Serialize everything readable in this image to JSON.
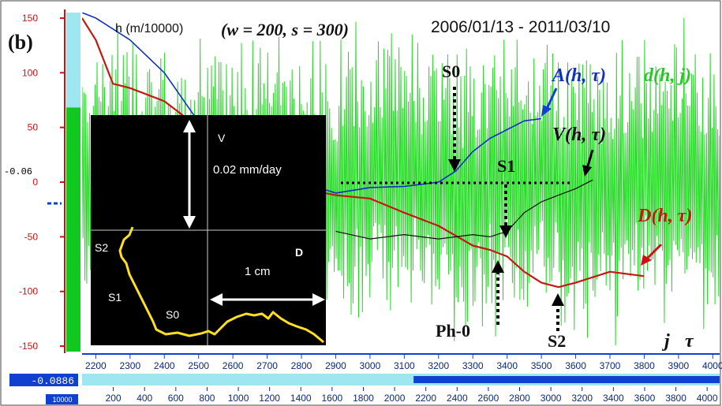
{
  "panel_label": "(b)",
  "header": {
    "unit_label": "h (m/10000)",
    "params": "(w = 200, s = 300)",
    "date_range": "2006/01/13 - 2011/03/10"
  },
  "colors": {
    "d_series": "#27d827",
    "A_series": "#1030c0",
    "V_series": "#101010",
    "D_series": "#c01a12",
    "axis_red": "#d01010",
    "axis_blue": "#1040d0",
    "gauge_cyan": "#9fe7f0",
    "gauge_green": "#10c820"
  },
  "left_gauge": {
    "marker_label": "-0.06",
    "level_fraction": 0.72
  },
  "bottom_bar": {
    "value": "-0.0886",
    "scale_tag": "10000",
    "progress_fraction": 0.52
  },
  "legend": {
    "A": "A(h, τ)",
    "V": "V(h, τ)",
    "D": "D(h, τ)",
    "d": "d(h, j)"
  },
  "axis_symbols": {
    "j": "j",
    "tau": "τ"
  },
  "annotations": {
    "S0": "S0",
    "S1": "S1",
    "S2": "S2",
    "Ph0": "Ph-0"
  },
  "inset": {
    "v_label": "V",
    "v_scale": "0.02 mm/day",
    "d_label": "D",
    "d_scale": "1 cm",
    "S0": "S0",
    "S1": "S1",
    "S2": "S2"
  },
  "chart_data": {
    "type": "line",
    "y_ticks": [
      150,
      100,
      50,
      0,
      -50,
      -100,
      -150
    ],
    "ylim": [
      -155,
      155
    ],
    "x_ticks_tau": [
      2200,
      2300,
      2400,
      2500,
      2600,
      2700,
      2800,
      2900,
      3000,
      3100,
      3200,
      3300,
      3400,
      3500,
      3600,
      3700,
      3800,
      3900,
      4000
    ],
    "xlim_tau": [
      2160,
      4020
    ],
    "x_ticks_j": [
      200,
      400,
      600,
      800,
      1000,
      1200,
      1400,
      1600,
      1800,
      2000,
      2200,
      2400,
      2600,
      2800,
      3000,
      3200,
      3400,
      3600,
      3800,
      4000
    ],
    "xlim_j": [
      0,
      4080
    ],
    "series": [
      {
        "key": "D",
        "name": "D(h, τ)",
        "x": [
          2160,
          2200,
          2250,
          2300,
          2400,
          2500,
          2600,
          2700,
          2800,
          2900,
          3000,
          3100,
          3200,
          3300,
          3350,
          3400,
          3450,
          3500,
          3550,
          3600,
          3700,
          3800
        ],
        "y": [
          150,
          130,
          90,
          86,
          74,
          50,
          34,
          10,
          -6,
          -12,
          -15,
          -28,
          -40,
          -58,
          -62,
          -68,
          -82,
          -92,
          -96,
          -92,
          -82,
          -86
        ]
      },
      {
        "key": "A",
        "name": "A(h, τ)",
        "x": [
          2160,
          2200,
          2300,
          2400,
          2500,
          2600,
          2700,
          2800,
          2900,
          3000,
          3100,
          3150,
          3200,
          3250,
          3300,
          3350,
          3400,
          3450,
          3500
        ],
        "y": [
          155,
          150,
          130,
          100,
          55,
          30,
          15,
          0,
          -10,
          -5,
          -4,
          -2,
          0,
          10,
          28,
          40,
          48,
          56,
          58
        ]
      },
      {
        "key": "V",
        "name": "V(h, τ)",
        "x": [
          2900,
          3000,
          3100,
          3200,
          3300,
          3350,
          3400,
          3450,
          3500,
          3550,
          3600,
          3650
        ],
        "y": [
          -45,
          -52,
          -48,
          -52,
          -48,
          -50,
          -45,
          -28,
          -18,
          -12,
          -6,
          2
        ]
      }
    ],
    "d_series": {
      "key": "d",
      "name": "d(h, j)",
      "x_axis": "j",
      "j_range": [
        0,
        4080
      ],
      "y_range": [
        -150,
        150
      ],
      "description": "high-frequency oscillating signal over the full j range"
    },
    "reference_line_y": 0
  }
}
